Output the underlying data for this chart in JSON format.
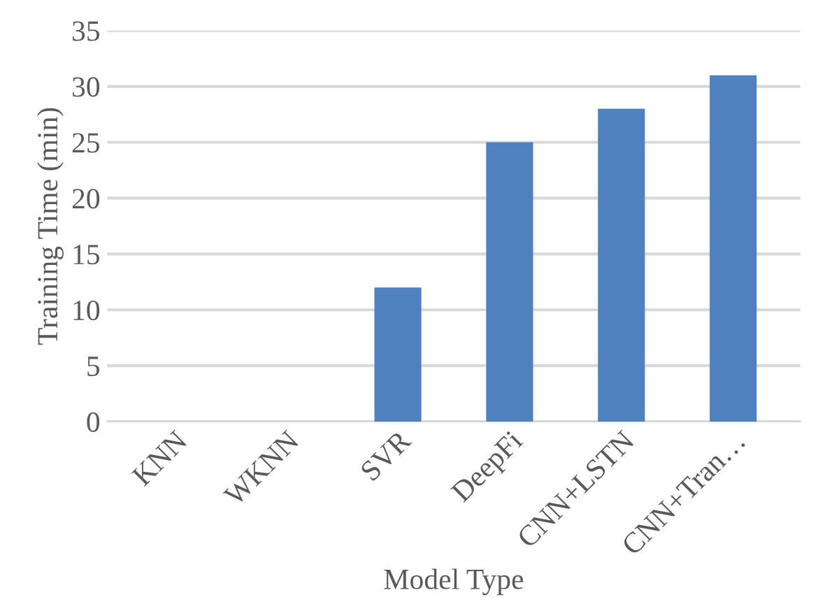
{
  "chart_data": {
    "type": "bar",
    "xlabel": "Model Type",
    "ylabel": "Training Time (min)",
    "categories": [
      "KNN",
      "WKNN",
      "SVR",
      "DeepFi",
      "CNN+LSTN",
      "CNN+Tran…"
    ],
    "values": [
      0,
      0,
      12,
      25,
      28,
      31
    ],
    "color": "#4e81bd",
    "ylim": [
      0,
      35
    ],
    "yticks": [
      0,
      5,
      10,
      15,
      20,
      25,
      30,
      35
    ],
    "grid": "y"
  }
}
